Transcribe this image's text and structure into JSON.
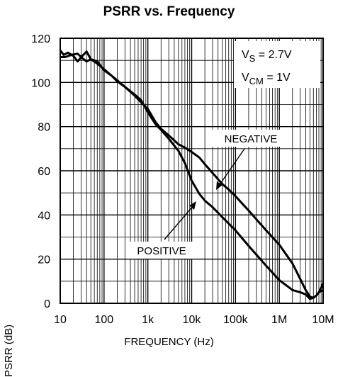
{
  "chart_data": {
    "type": "line",
    "title": "PSRR vs. Frequency",
    "xlabel": "FREQUENCY (Hz)",
    "ylabel": "PSRR (dB)",
    "x_scale": "log",
    "xlim": [
      10,
      10000000
    ],
    "ylim": [
      0,
      120
    ],
    "x_ticks": [
      10,
      100,
      1000,
      10000,
      100000,
      1000000,
      10000000
    ],
    "x_tick_labels": [
      "10",
      "100",
      "1k",
      "10k",
      "100k",
      "1M",
      "10M"
    ],
    "y_ticks": [
      0,
      20,
      40,
      60,
      80,
      100,
      120
    ],
    "y_tick_labels": [
      "0",
      "20",
      "40",
      "60",
      "80",
      "100",
      "120"
    ],
    "grid": true,
    "conditions": {
      "vs_main": "V",
      "vs_sub": "S",
      "vs_value": " = 2.7V",
      "vcm_main": "V",
      "vcm_sub": "CM",
      "vcm_value": " = 1V"
    },
    "annotations": [
      "NEGATIVE",
      "POSITIVE"
    ],
    "series": [
      {
        "name": "NEGATIVE",
        "x": [
          10,
          13,
          18,
          25,
          32,
          40,
          50,
          70,
          100,
          150,
          200,
          300,
          500,
          700,
          1000,
          1500,
          2000,
          3000,
          5000,
          7000,
          10000,
          15000,
          20000,
          30000,
          50000,
          70000,
          100000,
          200000,
          500000,
          1000000,
          2000000,
          3000000,
          4000000,
          5000000,
          6000000,
          7000000,
          8000000,
          9000000,
          10000000
        ],
        "y": [
          111.5,
          111.5,
          112.5,
          113,
          111,
          109.5,
          110.5,
          108.5,
          106,
          103,
          101,
          98,
          94,
          91,
          88,
          82,
          79,
          76,
          72,
          70.5,
          68.5,
          66,
          63,
          59,
          54,
          51.5,
          48.5,
          42,
          33,
          26.5,
          18,
          11,
          6,
          3,
          2.5,
          3.5,
          5,
          7,
          9
        ]
      },
      {
        "name": "POSITIVE",
        "x": [
          10,
          12,
          15,
          20,
          25,
          32,
          40,
          50,
          70,
          100,
          150,
          200,
          300,
          500,
          700,
          1000,
          1500,
          2000,
          3000,
          5000,
          7000,
          10000,
          15000,
          20000,
          30000,
          50000,
          100000,
          200000,
          500000,
          1000000,
          2000000,
          3000000,
          4000000,
          5000000,
          6000000,
          7000000,
          8000000,
          10000000
        ],
        "y": [
          114.5,
          112.5,
          113.5,
          112,
          109.5,
          112,
          114,
          110.5,
          109.5,
          105.5,
          103,
          100.5,
          98,
          94.5,
          92,
          86.5,
          81,
          78.5,
          74.5,
          69,
          63.5,
          55.5,
          49.5,
          46.5,
          43.5,
          39,
          33,
          26,
          17,
          10.5,
          6,
          5,
          4,
          2,
          2.5,
          3.5,
          5,
          6
        ]
      }
    ]
  }
}
